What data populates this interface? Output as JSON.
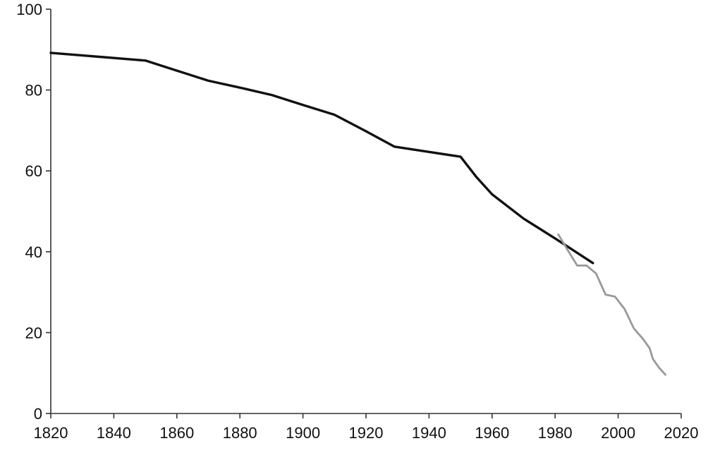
{
  "chart_data": {
    "type": "line",
    "title": "",
    "xlabel": "",
    "ylabel": "",
    "xlim": [
      1820,
      2020
    ],
    "ylim": [
      0,
      100
    ],
    "x_ticks": [
      1820,
      1840,
      1860,
      1880,
      1900,
      1920,
      1940,
      1960,
      1980,
      2000,
      2020
    ],
    "y_ticks": [
      0,
      20,
      40,
      60,
      80,
      100
    ],
    "x_tick_labels": [
      "1820",
      "1840",
      "1860",
      "1880",
      "1900",
      "1920",
      "1940",
      "1960",
      "1980",
      "2000",
      "2020"
    ],
    "y_tick_labels": [
      "0",
      "20",
      "40",
      "60",
      "80",
      "100"
    ],
    "grid": false,
    "legend": "none",
    "series": [
      {
        "color": "#111111",
        "points": [
          [
            1820,
            89.2
          ],
          [
            1850,
            87.3
          ],
          [
            1860,
            84.8
          ],
          [
            1870,
            82.3
          ],
          [
            1880,
            80.6
          ],
          [
            1890,
            78.8
          ],
          [
            1900,
            76.3
          ],
          [
            1910,
            73.9
          ],
          [
            1920,
            69.8
          ],
          [
            1929,
            66.0
          ],
          [
            1940,
            64.7
          ],
          [
            1950,
            63.5
          ],
          [
            1955,
            58.5
          ],
          [
            1960,
            54.2
          ],
          [
            1970,
            48.2
          ],
          [
            1980,
            43.3
          ],
          [
            1992,
            37.2
          ]
        ]
      },
      {
        "color": "#999999",
        "points": [
          [
            1981,
            44.3
          ],
          [
            1984,
            40.4
          ],
          [
            1987,
            36.6
          ],
          [
            1990,
            36.6
          ],
          [
            1993,
            34.6
          ],
          [
            1996,
            29.4
          ],
          [
            1999,
            28.9
          ],
          [
            2002,
            25.9
          ],
          [
            2005,
            21.0
          ],
          [
            2008,
            18.3
          ],
          [
            2010,
            16.1
          ],
          [
            2011,
            13.5
          ],
          [
            2013,
            11.3
          ],
          [
            2015,
            9.6
          ]
        ]
      }
    ]
  }
}
